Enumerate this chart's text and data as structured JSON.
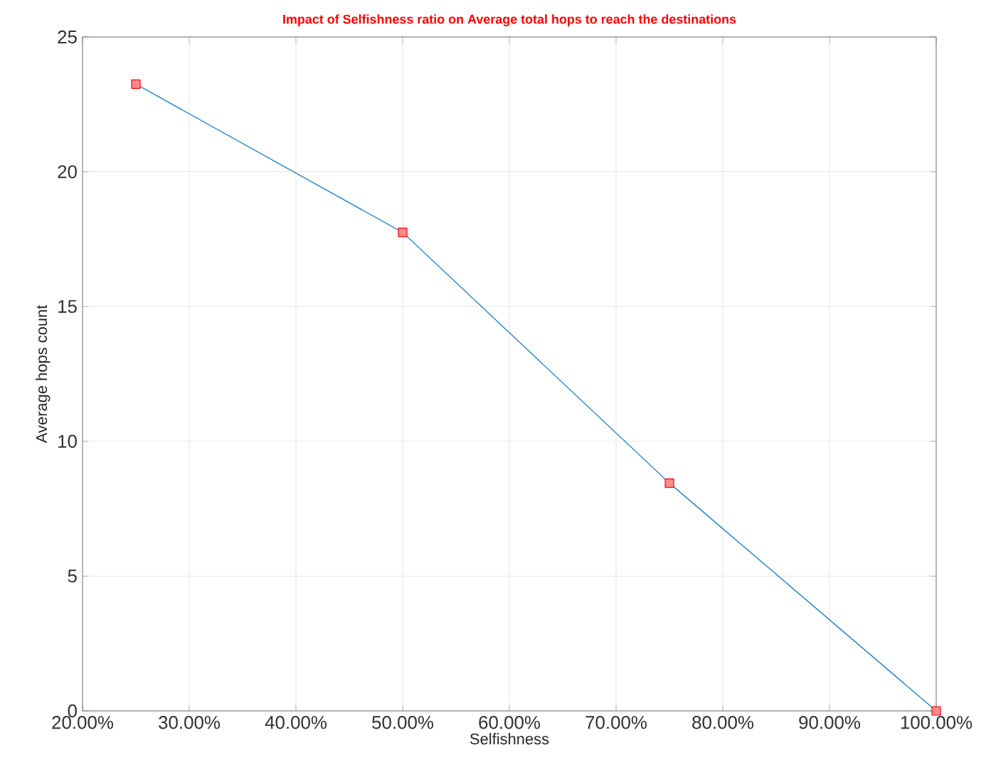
{
  "chart_data": {
    "type": "line",
    "title": "Impact of Selfishness ratio on Average total hops to reach the destinations",
    "xlabel": "Selfishness",
    "ylabel": "Average hops count",
    "x": [
      25,
      50,
      75,
      100
    ],
    "series": [
      {
        "color": "#0072bd",
        "values": [
          23.25,
          17.75,
          8.45,
          0
        ]
      }
    ],
    "xlim": [
      20,
      100
    ],
    "ylim": [
      0,
      25
    ],
    "xticks": [
      {
        "value": 20,
        "label": "20.00%"
      },
      {
        "value": 30,
        "label": "30.00%"
      },
      {
        "value": 40,
        "label": "40.00%"
      },
      {
        "value": 50,
        "label": "50.00%"
      },
      {
        "value": 60,
        "label": "60.00%"
      },
      {
        "value": 70,
        "label": "70.00%"
      },
      {
        "value": 80,
        "label": "80.00%"
      },
      {
        "value": 90,
        "label": "90.00%"
      },
      {
        "value": 100,
        "label": "100.00%"
      }
    ],
    "yticks": [
      0,
      5,
      10,
      15,
      20,
      25
    ],
    "grid": true,
    "marker": "square",
    "line_style": "solid"
  }
}
